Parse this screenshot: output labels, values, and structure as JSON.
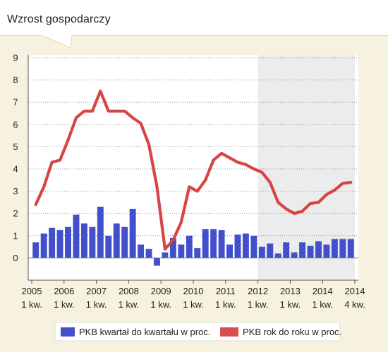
{
  "chart_data": {
    "type": "bar+line",
    "title": "Wzrost gospodarczy",
    "ylim": [
      -1,
      9
    ],
    "yticks": [
      0,
      1,
      2,
      3,
      4,
      5,
      6,
      7,
      8,
      9
    ],
    "grid": true,
    "x_quarters": [
      "2005 Q1",
      "2005 Q2",
      "2005 Q3",
      "2005 Q4",
      "2006 Q1",
      "2006 Q2",
      "2006 Q3",
      "2006 Q4",
      "2007 Q1",
      "2007 Q2",
      "2007 Q3",
      "2007 Q4",
      "2008 Q1",
      "2008 Q2",
      "2008 Q3",
      "2008 Q4",
      "2009 Q1",
      "2009 Q2",
      "2009 Q3",
      "2009 Q4",
      "2010 Q1",
      "2010 Q2",
      "2010 Q3",
      "2010 Q4",
      "2011 Q1",
      "2011 Q2",
      "2011 Q3",
      "2011 Q4",
      "2012 Q1",
      "2012 Q2",
      "2012 Q3",
      "2012 Q4",
      "2013 Q1",
      "2013 Q2",
      "2013 Q3",
      "2013 Q4",
      "2014 Q1",
      "2014 Q2",
      "2014 Q3",
      "2014 Q4"
    ],
    "x_tick_labels": [
      {
        "index": 0,
        "year": "2005",
        "q": "1 kw."
      },
      {
        "index": 4,
        "year": "2006",
        "q": "1 kw."
      },
      {
        "index": 8,
        "year": "2007",
        "q": "1 kw."
      },
      {
        "index": 12,
        "year": "2008",
        "q": "1 kw."
      },
      {
        "index": 16,
        "year": "2009",
        "q": "1 kw."
      },
      {
        "index": 20,
        "year": "2010",
        "q": "1 kw."
      },
      {
        "index": 24,
        "year": "2011",
        "q": "1 kw."
      },
      {
        "index": 28,
        "year": "2012",
        "q": "1 kw."
      },
      {
        "index": 32,
        "year": "2013",
        "q": "1 kw."
      },
      {
        "index": 36,
        "year": "2014",
        "q": "1 kw."
      },
      {
        "index": 39,
        "year": "2014",
        "q": "4 kw."
      }
    ],
    "shaded_range_quarters": [
      "2012 Q1",
      "2014 Q4"
    ],
    "series": [
      {
        "name": "PKB kwartał do kwartału w proc.",
        "type": "bar",
        "color": "#3a48c9",
        "values": [
          0.7,
          1.1,
          1.35,
          1.25,
          1.4,
          1.95,
          1.55,
          1.4,
          2.3,
          1.0,
          1.55,
          1.4,
          2.2,
          0.6,
          0.4,
          -0.35,
          0.25,
          0.9,
          0.6,
          1.0,
          0.45,
          1.3,
          1.3,
          1.25,
          0.6,
          1.05,
          1.1,
          1.0,
          0.5,
          0.65,
          0.2,
          0.7,
          0.25,
          0.7,
          0.55,
          0.75,
          0.6,
          0.85,
          0.85,
          0.85
        ]
      },
      {
        "name": "PKB rok do roku w proc.",
        "type": "line",
        "color": "#d64545",
        "values": [
          2.4,
          3.2,
          4.3,
          4.4,
          5.3,
          6.3,
          6.6,
          6.6,
          7.5,
          6.6,
          6.6,
          6.6,
          6.3,
          6.05,
          5.1,
          3.2,
          0.4,
          0.8,
          1.6,
          3.2,
          3.0,
          3.5,
          4.4,
          4.7,
          4.5,
          4.3,
          4.2,
          4.0,
          3.85,
          3.4,
          2.5,
          2.2,
          2.0,
          2.1,
          2.45,
          2.5,
          2.85,
          3.05,
          3.35,
          3.4
        ]
      }
    ]
  }
}
